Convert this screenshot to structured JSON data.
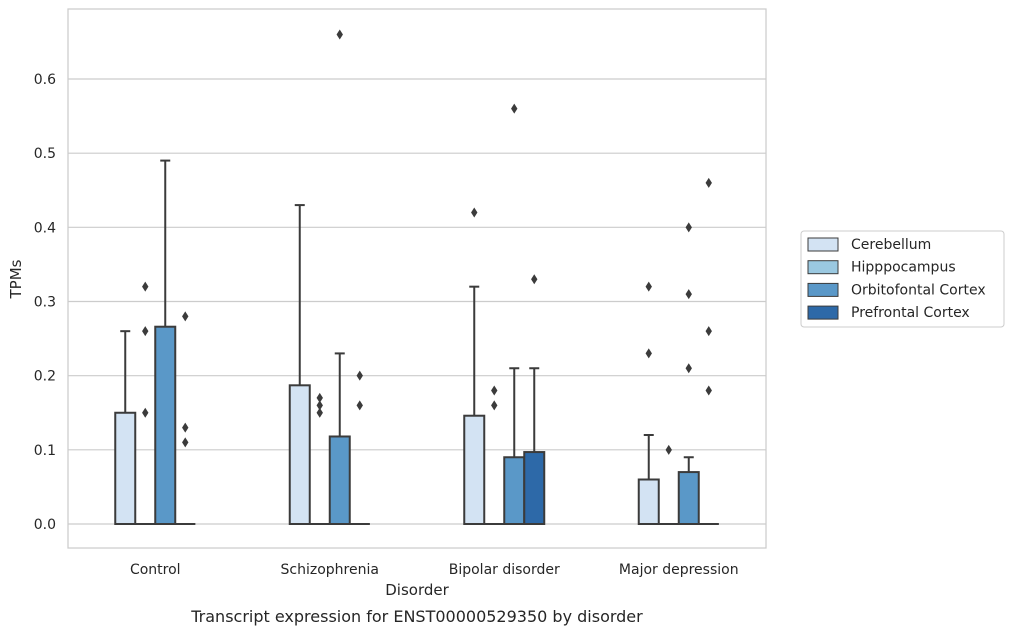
{
  "chart_data": {
    "type": "box",
    "title": "",
    "caption": "Transcript expression for ENST00000529350 by disorder",
    "xlabel": "Disorder",
    "ylabel": "TPMs",
    "ylim": [
      -0.032,
      0.695
    ],
    "yticks": [
      0.0,
      0.1,
      0.2,
      0.3,
      0.4,
      0.5,
      0.6
    ],
    "ytick_labels": [
      "0.0",
      "0.1",
      "0.2",
      "0.3",
      "0.4",
      "0.5",
      "0.6"
    ],
    "grid": true,
    "legend_position": "right",
    "categories": [
      "Control",
      "Schizophrenia",
      "Bipolar disorder",
      "Major depression"
    ],
    "series": [
      {
        "name": "Cerebellum",
        "color": "#d3e3f3",
        "boxes": [
          {
            "q1": 0.0,
            "median": 0.0,
            "q3": 0.15,
            "whisker_low": 0.0,
            "whisker_high": 0.26,
            "outliers": []
          },
          {
            "q1": 0.0,
            "median": 0.0,
            "q3": 0.187,
            "whisker_low": 0.0,
            "whisker_high": 0.43,
            "outliers": []
          },
          {
            "q1": 0.0,
            "median": 0.0,
            "q3": 0.146,
            "whisker_low": 0.0,
            "whisker_high": 0.32,
            "outliers": [
              0.42
            ]
          },
          {
            "q1": 0.0,
            "median": 0.0,
            "q3": 0.06,
            "whisker_low": 0.0,
            "whisker_high": 0.12,
            "outliers": [
              0.23,
              0.32
            ]
          }
        ]
      },
      {
        "name": "Hipppocampus",
        "color": "#9ac8e0",
        "boxes": [
          {
            "q1": 0.0,
            "median": 0.0,
            "q3": 0.0,
            "whisker_low": 0.0,
            "whisker_high": 0.0,
            "outliers": [
              0.15,
              0.26,
              0.32
            ]
          },
          {
            "q1": 0.0,
            "median": 0.0,
            "q3": 0.0,
            "whisker_low": 0.0,
            "whisker_high": 0.0,
            "outliers": [
              0.15,
              0.16,
              0.17
            ]
          },
          {
            "q1": 0.0,
            "median": 0.0,
            "q3": 0.0,
            "whisker_low": 0.0,
            "whisker_high": 0.0,
            "outliers": [
              0.16,
              0.18
            ]
          },
          {
            "q1": 0.0,
            "median": 0.0,
            "q3": 0.0,
            "whisker_low": 0.0,
            "whisker_high": 0.0,
            "outliers": [
              0.1
            ]
          }
        ]
      },
      {
        "name": "Orbitofontal Cortex",
        "color": "#5a98c8",
        "boxes": [
          {
            "q1": 0.0,
            "median": 0.0,
            "q3": 0.266,
            "whisker_low": 0.0,
            "whisker_high": 0.49,
            "outliers": []
          },
          {
            "q1": 0.0,
            "median": 0.0,
            "q3": 0.118,
            "whisker_low": 0.0,
            "whisker_high": 0.23,
            "outliers": [
              0.66
            ]
          },
          {
            "q1": 0.0,
            "median": 0.0,
            "q3": 0.09,
            "whisker_low": 0.0,
            "whisker_high": 0.21,
            "outliers": [
              0.56
            ]
          },
          {
            "q1": 0.0,
            "median": 0.0,
            "q3": 0.07,
            "whisker_low": 0.0,
            "whisker_high": 0.09,
            "outliers": [
              0.21,
              0.31,
              0.4
            ]
          }
        ]
      },
      {
        "name": "Prefrontal Cortex",
        "color": "#2d69a8",
        "boxes": [
          {
            "q1": 0.0,
            "median": 0.0,
            "q3": 0.0,
            "whisker_low": 0.0,
            "whisker_high": 0.0,
            "outliers": [
              0.11,
              0.13,
              0.28
            ]
          },
          {
            "q1": 0.0,
            "median": 0.0,
            "q3": 0.0,
            "whisker_low": 0.0,
            "whisker_high": 0.0,
            "outliers": [
              0.16,
              0.2
            ]
          },
          {
            "q1": 0.0,
            "median": 0.0,
            "q3": 0.097,
            "whisker_low": 0.0,
            "whisker_high": 0.21,
            "outliers": [
              0.33
            ]
          },
          {
            "q1": 0.0,
            "median": 0.0,
            "q3": 0.0,
            "whisker_low": 0.0,
            "whisker_high": 0.0,
            "outliers": [
              0.18,
              0.26,
              0.46
            ]
          }
        ]
      }
    ]
  }
}
